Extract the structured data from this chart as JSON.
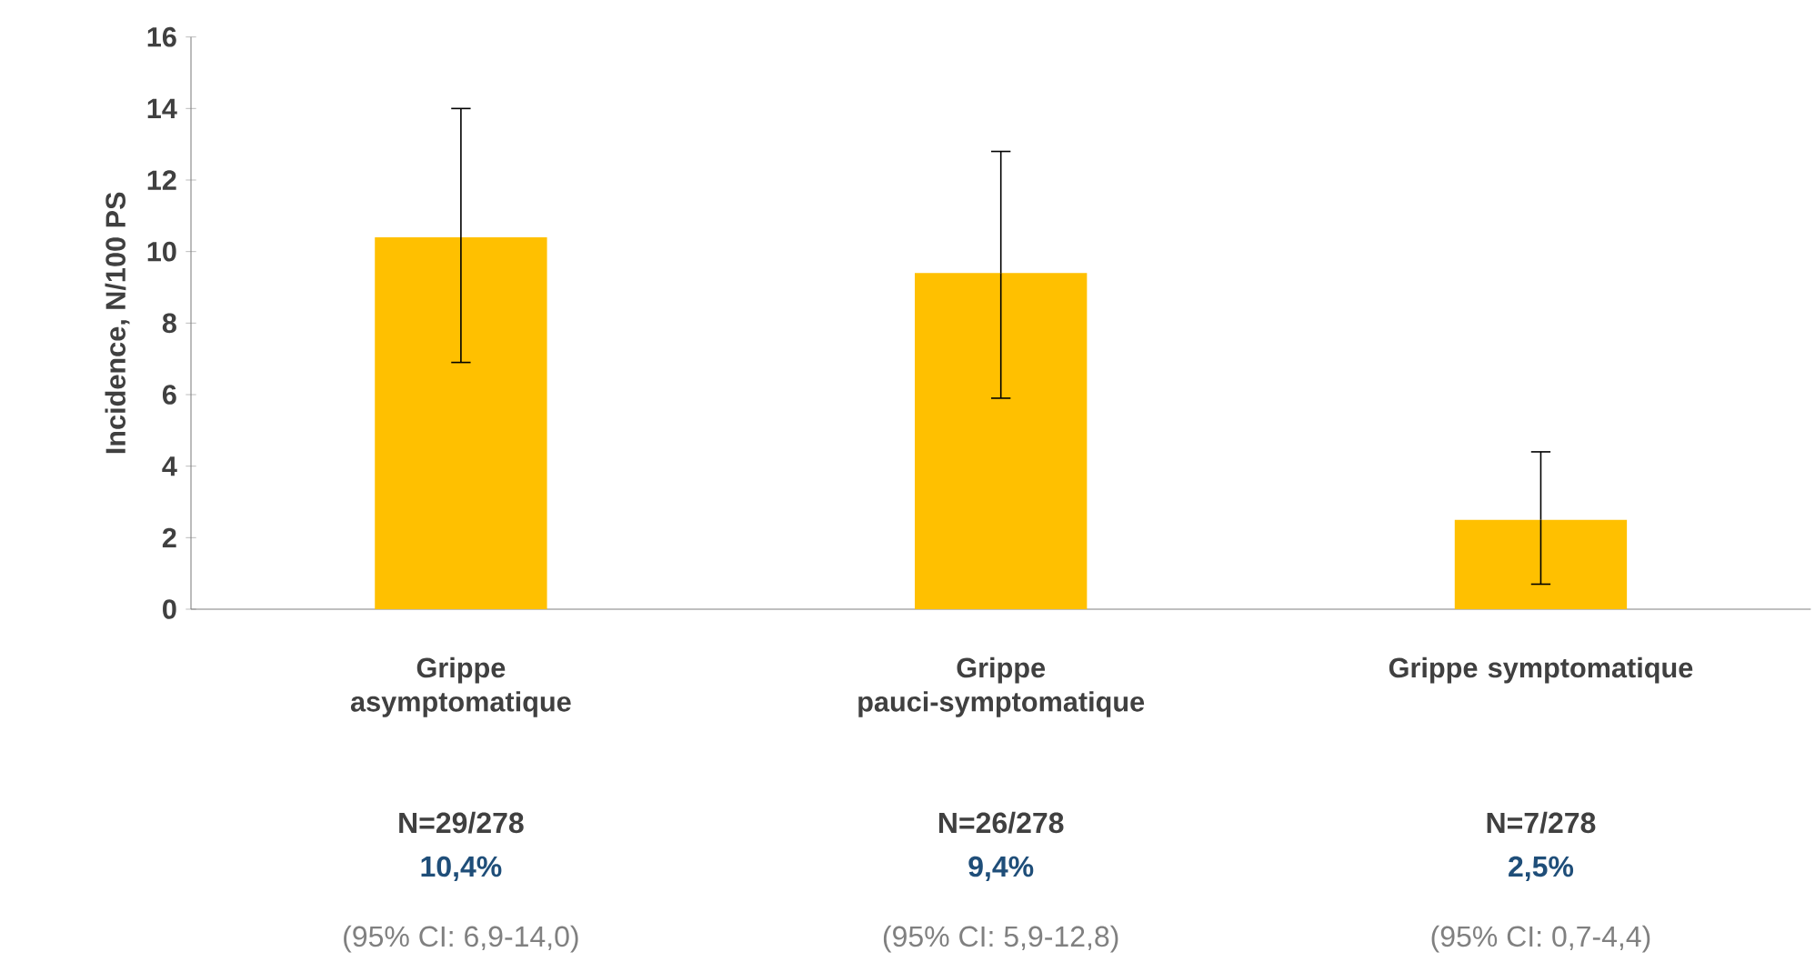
{
  "chart_data": {
    "type": "bar",
    "categories": [
      "Grippe asymptomatique",
      "Grippe pauci-symptomatique",
      "Grippe symptomatique"
    ],
    "values": [
      10.4,
      9.4,
      2.5
    ],
    "errors": [
      [
        6.9,
        14.0
      ],
      [
        5.9,
        12.8
      ],
      [
        0.7,
        4.4
      ]
    ],
    "color": "#ffc000",
    "ylabel": "Incidence, N/100 PS",
    "ylim": [
      0,
      16
    ],
    "yticks": [
      0,
      2,
      4,
      6,
      8,
      10,
      12,
      14,
      16
    ],
    "annotations": [
      "N=29/278",
      "10,4%",
      "(95% CI: 6,9-14,0)",
      "N=26/278",
      "9,4%",
      "(95% CI: 5,9-12,8)",
      "N=7/278",
      "2,5%",
      "(95% CI: 0,7-4,4)"
    ]
  }
}
